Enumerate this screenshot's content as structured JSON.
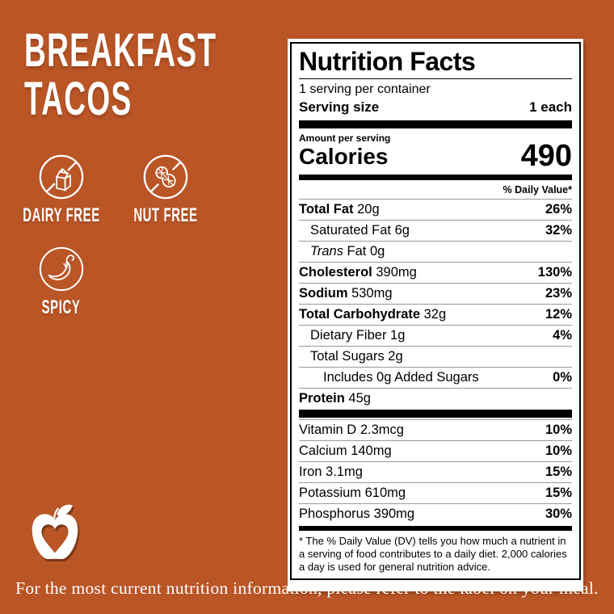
{
  "colors": {
    "background": "#BA5526",
    "text_on_background": "#FFFFFF",
    "label_background": "#FFFFFF",
    "label_text": "#000000",
    "hairline": "#999999"
  },
  "title": {
    "line1": "BREAKFAST",
    "line2": "TACOS"
  },
  "badges": [
    {
      "label": "DAIRY FREE",
      "icon": "no-dairy-icon"
    },
    {
      "label": "NUT FREE",
      "icon": "no-nut-icon"
    },
    {
      "label": "SPICY",
      "icon": "chili-pepper-icon"
    }
  ],
  "logo": {
    "icon": "apple-heart-logo"
  },
  "nutrition_label": {
    "title": "Nutrition Facts",
    "servings_per_container": "1 serving per container",
    "serving_size_label": "Serving size",
    "serving_size_value": "1 each",
    "amount_per_serving": "Amount per serving",
    "calories_label": "Calories",
    "calories_value": "490",
    "daily_value_header": "% Daily Value*",
    "rows": [
      {
        "name": "Total Fat",
        "amount": "20g",
        "dv": "26%",
        "style": "bold",
        "indent": 0
      },
      {
        "name": "Saturated Fat",
        "amount": "6g",
        "dv": "32%",
        "style": "plain",
        "indent": 1
      },
      {
        "name": "Trans",
        "name_rest": " Fat",
        "amount": "0g",
        "dv": "",
        "style": "italic-name",
        "indent": 1
      },
      {
        "name": "Cholesterol",
        "amount": "390mg",
        "dv": "130%",
        "style": "bold",
        "indent": 0
      },
      {
        "name": "Sodium",
        "amount": "530mg",
        "dv": "23%",
        "style": "bold",
        "indent": 0
      },
      {
        "name": "Total Carbohydrate",
        "amount": "32g",
        "dv": "12%",
        "style": "bold",
        "indent": 0
      },
      {
        "name": "Dietary Fiber",
        "amount": "1g",
        "dv": "4%",
        "style": "plain",
        "indent": 1
      },
      {
        "name": "Total Sugars",
        "amount": "2g",
        "dv": "",
        "style": "plain",
        "indent": 1
      },
      {
        "name": "Includes 0g Added Sugars",
        "amount": "",
        "dv": "0%",
        "style": "plain",
        "indent": 2
      },
      {
        "name": "Protein",
        "amount": "45g",
        "dv": "",
        "style": "bold",
        "indent": 0
      }
    ],
    "micronutrients": [
      {
        "name": "Vitamin D",
        "amount": "2.3mcg",
        "dv": "10%"
      },
      {
        "name": "Calcium",
        "amount": "140mg",
        "dv": "10%"
      },
      {
        "name": "Iron",
        "amount": "3.1mg",
        "dv": "15%"
      },
      {
        "name": "Potassium",
        "amount": "610mg",
        "dv": "15%"
      },
      {
        "name": "Phosphorus",
        "amount": "390mg",
        "dv": "30%"
      }
    ],
    "footnote": "* The % Daily Value (DV) tells you how much a nutrient in a serving of food contributes to a daily diet. 2,000 calories a day is used for general nutrition advice."
  },
  "footer": {
    "text": "For the most current nutrition information, please refer to the label on your meal."
  }
}
